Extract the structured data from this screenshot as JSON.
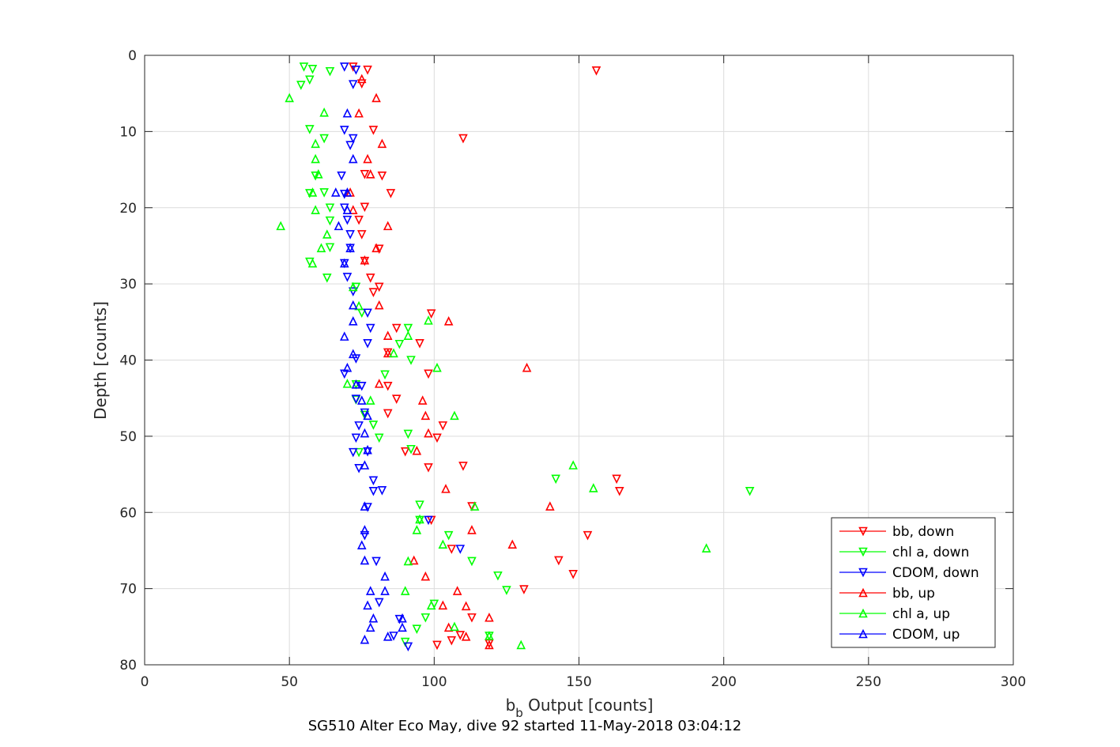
{
  "chart_data": {
    "type": "scatter",
    "title": "SG510 Alter Eco May, dive 92 started 11-May-2018 03:04:12",
    "xlabel": {
      "main": "b",
      "sub": "b",
      "rest": " Output [counts]"
    },
    "ylabel": "Depth [counts]",
    "xlim": [
      0,
      300
    ],
    "ylim": [
      0,
      80
    ],
    "y_reversed": true,
    "grid": true,
    "legend_position": "bottom-right",
    "x_ticks": [
      "0",
      "50",
      "100",
      "150",
      "200",
      "250",
      "300"
    ],
    "y_ticks": [
      "0",
      "10",
      "20",
      "30",
      "40",
      "50",
      "60",
      "70",
      "80"
    ],
    "series": [
      {
        "name": "bb, down",
        "color": "#ff0000",
        "marker": "down",
        "points": [
          [
            72,
            1.5
          ],
          [
            77,
            1.9
          ],
          [
            156,
            2.0
          ],
          [
            75,
            3.7
          ],
          [
            79,
            9.8
          ],
          [
            110,
            10.9
          ],
          [
            76,
            15.6
          ],
          [
            82,
            15.8
          ],
          [
            85,
            18.1
          ],
          [
            76,
            19.9
          ],
          [
            74,
            21.6
          ],
          [
            75,
            23.5
          ],
          [
            81,
            25.4
          ],
          [
            76,
            27.0
          ],
          [
            78,
            29.2
          ],
          [
            79,
            31.1
          ],
          [
            81,
            30.4
          ],
          [
            99,
            33.9
          ],
          [
            87,
            35.8
          ],
          [
            95,
            37.8
          ],
          [
            84,
            39.0
          ],
          [
            98,
            41.8
          ],
          [
            84,
            43.4
          ],
          [
            87,
            45.1
          ],
          [
            84,
            47.0
          ],
          [
            103,
            48.6
          ],
          [
            101,
            50.2
          ],
          [
            90,
            52.0
          ],
          [
            98,
            54.1
          ],
          [
            110,
            53.9
          ],
          [
            163,
            55.6
          ],
          [
            164,
            57.2
          ],
          [
            113,
            59.2
          ],
          [
            99,
            61.0
          ],
          [
            153,
            63.0
          ],
          [
            106,
            64.8
          ],
          [
            143,
            66.3
          ],
          [
            148,
            68.1
          ],
          [
            131,
            70.1
          ],
          [
            113,
            73.8
          ],
          [
            109,
            76.1
          ],
          [
            106,
            76.8
          ],
          [
            101,
            77.4
          ],
          [
            119,
            77.2
          ]
        ]
      },
      {
        "name": "chl a, down",
        "color": "#00ff00",
        "marker": "down",
        "points": [
          [
            55,
            1.5
          ],
          [
            58,
            1.8
          ],
          [
            64,
            2.1
          ],
          [
            57,
            3.2
          ],
          [
            54,
            3.9
          ],
          [
            57,
            9.7
          ],
          [
            62,
            10.9
          ],
          [
            59,
            15.8
          ],
          [
            62,
            18.0
          ],
          [
            57,
            18.1
          ],
          [
            64,
            20.0
          ],
          [
            64,
            21.7
          ],
          [
            64,
            25.2
          ],
          [
            57,
            27.1
          ],
          [
            63,
            29.2
          ],
          [
            73,
            30.4
          ],
          [
            75,
            33.8
          ],
          [
            91,
            35.8
          ],
          [
            88,
            37.9
          ],
          [
            92,
            40.0
          ],
          [
            83,
            41.9
          ],
          [
            73,
            43.2
          ],
          [
            73,
            45.2
          ],
          [
            76,
            47.2
          ],
          [
            79,
            48.5
          ],
          [
            81,
            50.2
          ],
          [
            91,
            49.7
          ],
          [
            92,
            51.7
          ],
          [
            74,
            52.1
          ],
          [
            142,
            55.6
          ],
          [
            209,
            57.2
          ],
          [
            95,
            59.0
          ],
          [
            95,
            61.0
          ],
          [
            105,
            63.0
          ],
          [
            113,
            66.4
          ],
          [
            122,
            68.3
          ],
          [
            125,
            70.2
          ],
          [
            100,
            72.0
          ],
          [
            97,
            73.8
          ],
          [
            94,
            75.3
          ],
          [
            90,
            77.0
          ],
          [
            119,
            76.2
          ]
        ]
      },
      {
        "name": "CDOM, down",
        "color": "#0000ff",
        "marker": "down",
        "points": [
          [
            69,
            1.5
          ],
          [
            73,
            1.9
          ],
          [
            72,
            3.8
          ],
          [
            69,
            9.8
          ],
          [
            72,
            10.9
          ],
          [
            71,
            11.8
          ],
          [
            68,
            15.8
          ],
          [
            69,
            18.2
          ],
          [
            69,
            20.0
          ],
          [
            70,
            21.6
          ],
          [
            71,
            23.5
          ],
          [
            71,
            25.3
          ],
          [
            69,
            27.3
          ],
          [
            70,
            29.1
          ],
          [
            72,
            31.0
          ],
          [
            77,
            33.8
          ],
          [
            78,
            35.8
          ],
          [
            77,
            37.8
          ],
          [
            73,
            39.8
          ],
          [
            69,
            41.8
          ],
          [
            75,
            43.4
          ],
          [
            73,
            45.1
          ],
          [
            76,
            46.9
          ],
          [
            74,
            48.6
          ],
          [
            73,
            50.2
          ],
          [
            72,
            52.1
          ],
          [
            77,
            52.0
          ],
          [
            74,
            54.2
          ],
          [
            79,
            55.8
          ],
          [
            79,
            57.2
          ],
          [
            82,
            57.1
          ],
          [
            77,
            59.3
          ],
          [
            76,
            63.0
          ],
          [
            80,
            66.4
          ],
          [
            81,
            71.8
          ],
          [
            86,
            76.2
          ],
          [
            91,
            77.6
          ],
          [
            88,
            74.0
          ],
          [
            109,
            64.8
          ],
          [
            98,
            61.0
          ]
        ]
      },
      {
        "name": "bb, up",
        "color": "#ff0000",
        "marker": "up",
        "points": [
          [
            75,
            3.1
          ],
          [
            80,
            5.6
          ],
          [
            74,
            7.6
          ],
          [
            82,
            11.6
          ],
          [
            77,
            13.6
          ],
          [
            78,
            15.6
          ],
          [
            71,
            18.0
          ],
          [
            72,
            20.3
          ],
          [
            84,
            22.4
          ],
          [
            80,
            25.3
          ],
          [
            76,
            26.9
          ],
          [
            81,
            32.8
          ],
          [
            105,
            34.9
          ],
          [
            84,
            36.8
          ],
          [
            84,
            39.1
          ],
          [
            132,
            41.0
          ],
          [
            81,
            43.1
          ],
          [
            96,
            45.3
          ],
          [
            97,
            47.3
          ],
          [
            98,
            49.6
          ],
          [
            94,
            51.9
          ],
          [
            104,
            56.9
          ],
          [
            140,
            59.2
          ],
          [
            113,
            62.3
          ],
          [
            127,
            64.2
          ],
          [
            93,
            66.3
          ],
          [
            97,
            68.4
          ],
          [
            108,
            70.3
          ],
          [
            103,
            72.2
          ],
          [
            111,
            72.3
          ],
          [
            119,
            73.8
          ],
          [
            105,
            75.1
          ],
          [
            111,
            76.3
          ],
          [
            119,
            77.4
          ]
        ]
      },
      {
        "name": "chl a, up",
        "color": "#00ff00",
        "marker": "up",
        "points": [
          [
            50,
            5.6
          ],
          [
            62,
            7.5
          ],
          [
            59,
            11.6
          ],
          [
            59,
            13.6
          ],
          [
            60,
            15.6
          ],
          [
            58,
            18.0
          ],
          [
            59,
            20.3
          ],
          [
            47,
            22.4
          ],
          [
            63,
            23.5
          ],
          [
            61,
            25.3
          ],
          [
            58,
            27.3
          ],
          [
            72,
            30.4
          ],
          [
            74,
            32.9
          ],
          [
            98,
            34.8
          ],
          [
            91,
            36.8
          ],
          [
            86,
            39.1
          ],
          [
            101,
            41.0
          ],
          [
            70,
            43.1
          ],
          [
            78,
            45.3
          ],
          [
            107,
            47.3
          ],
          [
            148,
            53.8
          ],
          [
            155,
            56.8
          ],
          [
            114,
            59.2
          ],
          [
            95,
            60.9
          ],
          [
            94,
            62.3
          ],
          [
            103,
            64.2
          ],
          [
            194,
            64.7
          ],
          [
            91,
            66.4
          ],
          [
            90,
            70.3
          ],
          [
            99,
            72.2
          ],
          [
            107,
            75.0
          ],
          [
            119,
            76.2
          ],
          [
            130,
            77.4
          ]
        ]
      },
      {
        "name": "CDOM, up",
        "color": "#0000ff",
        "marker": "up",
        "points": [
          [
            70,
            7.6
          ],
          [
            72,
            13.6
          ],
          [
            70,
            18.0
          ],
          [
            66,
            18.0
          ],
          [
            70,
            20.3
          ],
          [
            67,
            22.4
          ],
          [
            71,
            25.3
          ],
          [
            69,
            27.3
          ],
          [
            72,
            32.8
          ],
          [
            72,
            34.9
          ],
          [
            69,
            36.9
          ],
          [
            72,
            39.2
          ],
          [
            70,
            41.0
          ],
          [
            73,
            43.2
          ],
          [
            75,
            45.3
          ],
          [
            77,
            47.3
          ],
          [
            76,
            49.6
          ],
          [
            77,
            51.8
          ],
          [
            76,
            53.8
          ],
          [
            76,
            59.2
          ],
          [
            76,
            62.3
          ],
          [
            75,
            64.3
          ],
          [
            76,
            66.3
          ],
          [
            83,
            68.4
          ],
          [
            78,
            70.3
          ],
          [
            83,
            70.3
          ],
          [
            77,
            72.2
          ],
          [
            79,
            73.9
          ],
          [
            78,
            75.1
          ],
          [
            89,
            75.1
          ],
          [
            84,
            76.3
          ],
          [
            76,
            76.7
          ],
          [
            89,
            73.9
          ]
        ]
      }
    ]
  }
}
